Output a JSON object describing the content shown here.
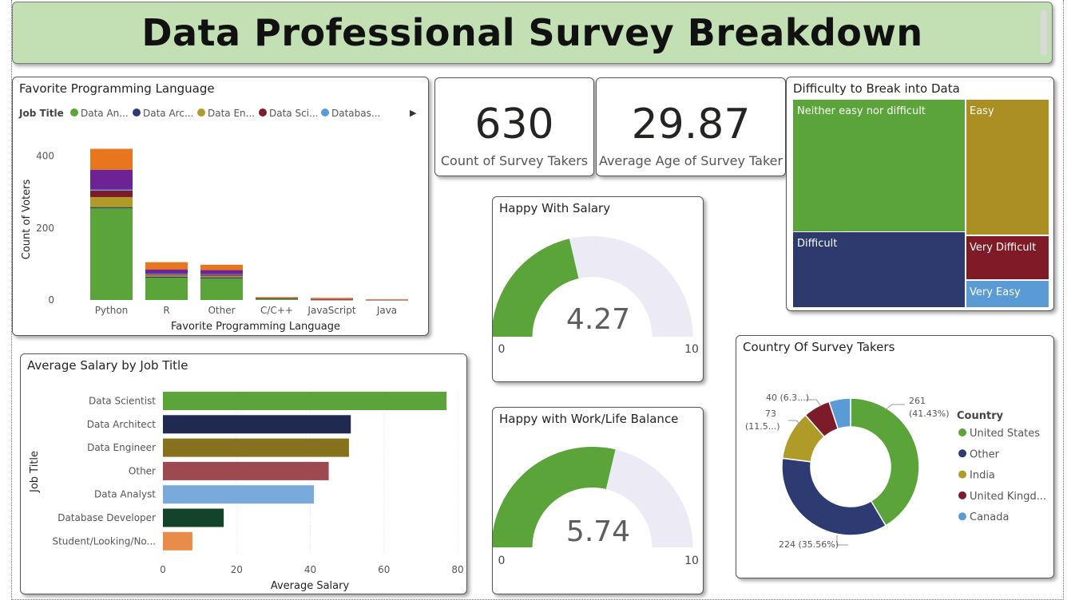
{
  "header": {
    "title": "Data Professional Survey Breakdown"
  },
  "kpis": {
    "count": {
      "value": "630",
      "label": "Count of Survey Takers"
    },
    "age": {
      "value": "29.87",
      "label": "Average Age of Survey Taker"
    }
  },
  "colors": {
    "data_analyst": "#5aa43a",
    "data_architect": "#2e3a72",
    "data_engineer": "#b09a28",
    "data_scientist": "#7e1b2a",
    "database_dev": "#5b9bd5",
    "orange": "#e8761e",
    "purple": "#6d2394"
  },
  "lang_chart": {
    "title": "Favorite Programming Language",
    "legend_label": "Job Title",
    "legend_items": [
      {
        "name": "Data An...",
        "color": "#5aa43a"
      },
      {
        "name": "Data Arc...",
        "color": "#2e3a72"
      },
      {
        "name": "Data En...",
        "color": "#b09a28"
      },
      {
        "name": "Data Sci...",
        "color": "#7e1b2a"
      },
      {
        "name": "Databas...",
        "color": "#5b9bd5"
      }
    ],
    "legend_arrow": "▶",
    "xlabel": "Favorite Programming Language",
    "ylabel": "Count of Voters"
  },
  "salary_chart": {
    "title": "Average Salary by Job Title",
    "xlabel": "Average Salary",
    "ylabel": "Job Title"
  },
  "difficulty": {
    "title": "Difficulty to Break into Data",
    "items": [
      {
        "label": "Neither easy nor difficult",
        "color": "#5aa43a"
      },
      {
        "label": "Easy",
        "color": "#ab8f22"
      },
      {
        "label": "Difficult",
        "color": "#2e3a6e"
      },
      {
        "label": "Very Difficult",
        "color": "#7e1b26"
      },
      {
        "label": "Very Easy",
        "color": "#5b9bd5"
      }
    ]
  },
  "gauge_salary": {
    "title": "Happy With Salary",
    "value": 4.27,
    "value_text": "4.27",
    "min": "0",
    "max": "10",
    "max_value": 10
  },
  "gauge_balance": {
    "title": "Happy with Work/Life Balance",
    "value": 5.74,
    "value_text": "5.74",
    "min": "0",
    "max": "10",
    "max_value": 10
  },
  "country_chart": {
    "title": "Country Of Survey Takers",
    "legend_title": "Country",
    "labels": {
      "us_count": "261",
      "us_pct": "(41.43%)",
      "other": "224 (35.56%)",
      "india_count": "73",
      "india_pct": "(11.5...)",
      "uk": "40 (6.3...)"
    }
  },
  "chart_data": [
    {
      "type": "bar",
      "stacked": true,
      "title": "Favorite Programming Language",
      "xlabel": "Favorite Programming Language",
      "ylabel": "Count of Voters",
      "categories": [
        "Python",
        "R",
        "Other",
        "C/C++",
        "JavaScript",
        "Java"
      ],
      "yticks": [
        0,
        200,
        400
      ],
      "ylim": [
        0,
        430
      ],
      "series": [
        {
          "name": "Data An...",
          "color": "#5aa43a",
          "values": [
            255,
            62,
            60,
            4,
            0,
            0
          ]
        },
        {
          "color": "#2e3a72",
          "values": [
            3,
            3,
            3,
            1,
            0,
            0
          ]
        },
        {
          "color": "#b09a28",
          "values": [
            28,
            4,
            4,
            1,
            1,
            0
          ]
        },
        {
          "color": "#7e1b2a",
          "values": [
            18,
            3,
            4,
            0,
            0,
            0
          ]
        },
        {
          "color": "#5b9bd5",
          "values": [
            3,
            1,
            1,
            0,
            0,
            0
          ]
        },
        {
          "color": "#6d2394",
          "values": [
            55,
            12,
            11,
            1,
            1,
            1
          ]
        },
        {
          "color": "#e8761e",
          "values": [
            58,
            20,
            15,
            1,
            4,
            1
          ]
        }
      ]
    },
    {
      "type": "bar",
      "orientation": "horizontal",
      "title": "Average Salary by Job Title",
      "xlabel": "Average Salary",
      "ylabel": "Job Title",
      "categories": [
        "Data Scientist",
        "Data Architect",
        "Data Engineer",
        "Other",
        "Data Analyst",
        "Database Developer",
        "Student/Looking/No..."
      ],
      "values": [
        77,
        51,
        50.5,
        45,
        41,
        16.5,
        8
      ],
      "colors": [
        "#5aa43a",
        "#20294f",
        "#86711c",
        "#9e4950",
        "#7aa9dc",
        "#134328",
        "#e98b4a"
      ],
      "xticks": [
        0,
        20,
        40,
        60,
        80
      ],
      "xlim": [
        0,
        80
      ]
    },
    {
      "type": "pie",
      "donut": true,
      "title": "Country Of Survey Takers",
      "categories": [
        "United States",
        "Other",
        "India",
        "United Kingd...",
        "Canada"
      ],
      "values": [
        261,
        224,
        73,
        40,
        32
      ],
      "colors": [
        "#5aa43a",
        "#2e3a72",
        "#b09a28",
        "#7e1b2a",
        "#5b9bd5"
      ]
    },
    {
      "type": "treemap",
      "title": "Difficulty to Break into Data",
      "categories": [
        "Neither easy nor difficult",
        "Easy",
        "Difficult",
        "Very Difficult",
        "Very Easy"
      ]
    }
  ]
}
